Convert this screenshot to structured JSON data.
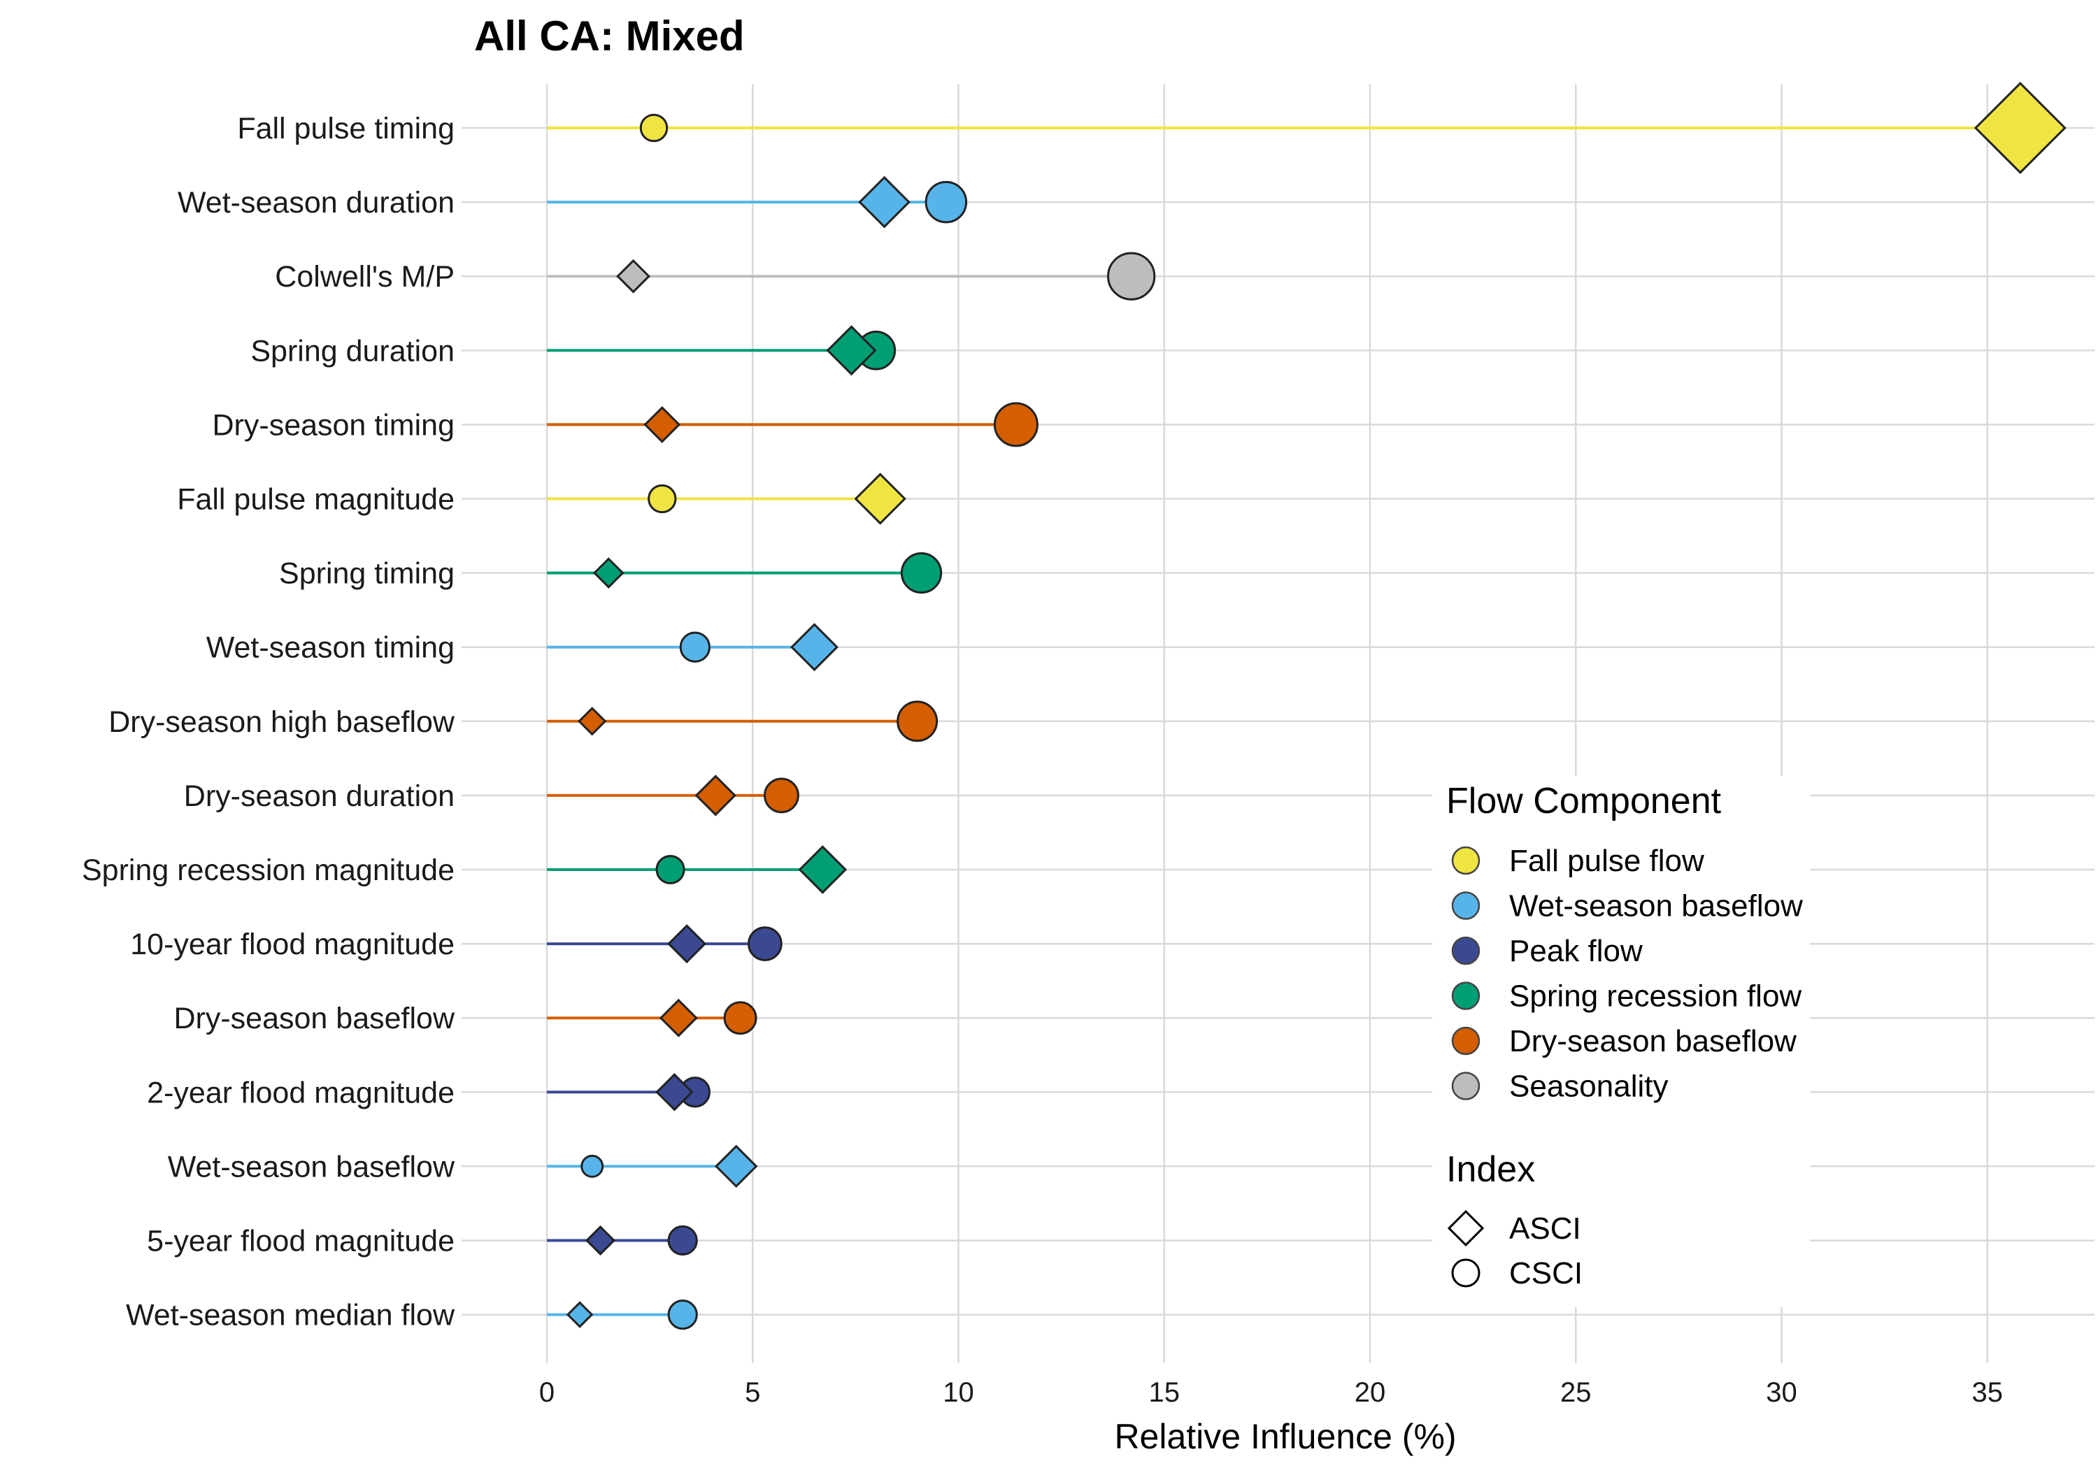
{
  "chart_data": {
    "type": "dot-dumbbell",
    "title": "All CA: Mixed",
    "xlabel": "Relative Influence (%)",
    "ylabel": "",
    "xlim": [
      0,
      35
    ],
    "xticks": [
      0,
      5,
      10,
      15,
      20,
      25,
      30,
      35
    ],
    "grid": true,
    "legend_position": "right-inside",
    "categories": [
      "Fall pulse timing",
      "Wet-season duration",
      "Colwell's M/P",
      "Spring duration",
      "Dry-season timing",
      "Fall pulse magnitude",
      "Spring timing",
      "Wet-season timing",
      "Dry-season high baseflow",
      "Dry-season duration",
      "Spring recession magnitude",
      "10-year flood magnitude",
      "Dry-season baseflow",
      "2-year flood magnitude",
      "Wet-season baseflow",
      "5-year flood magnitude",
      "Wet-season median flow"
    ],
    "component": [
      "Fall pulse flow",
      "Wet-season baseflow",
      "Seasonality",
      "Spring recession flow",
      "Dry-season baseflow",
      "Fall pulse flow",
      "Spring recession flow",
      "Wet-season baseflow",
      "Dry-season baseflow",
      "Dry-season baseflow",
      "Spring recession flow",
      "Peak flow",
      "Dry-season baseflow",
      "Peak flow",
      "Wet-season baseflow",
      "Peak flow",
      "Wet-season baseflow"
    ],
    "series": [
      {
        "name": "ASCI",
        "shape": "diamond",
        "values": [
          35.8,
          8.2,
          2.1,
          7.4,
          2.8,
          8.1,
          1.5,
          6.5,
          1.1,
          4.1,
          6.7,
          3.4,
          3.2,
          3.1,
          4.6,
          1.3,
          0.8
        ]
      },
      {
        "name": "CSCI",
        "shape": "circle",
        "values": [
          2.6,
          9.7,
          14.2,
          8.0,
          11.4,
          2.8,
          9.1,
          3.6,
          9.0,
          5.7,
          3.0,
          5.3,
          4.7,
          3.6,
          1.1,
          3.3,
          3.3
        ]
      }
    ],
    "legend": {
      "color_title": "Flow Component",
      "color_items": [
        {
          "label": "Fall pulse flow",
          "color": "#f0e442"
        },
        {
          "label": "Wet-season baseflow",
          "color": "#56b4e9"
        },
        {
          "label": "Peak flow",
          "color": "#3b4993"
        },
        {
          "label": "Spring recession flow",
          "color": "#009e73"
        },
        {
          "label": "Dry-season baseflow",
          "color": "#d55e00"
        },
        {
          "label": "Seasonality",
          "color": "#bdbdbd"
        }
      ],
      "shape_title": "Index",
      "shape_items": [
        {
          "label": "ASCI",
          "shape": "diamond"
        },
        {
          "label": "CSCI",
          "shape": "circle"
        }
      ]
    },
    "colors": {
      "Fall pulse flow": "#f0e442",
      "Wet-season baseflow": "#56b4e9",
      "Peak flow": "#3b4993",
      "Spring recession flow": "#009e73",
      "Dry-season baseflow": "#d55e00",
      "Seasonality": "#bdbdbd"
    }
  }
}
